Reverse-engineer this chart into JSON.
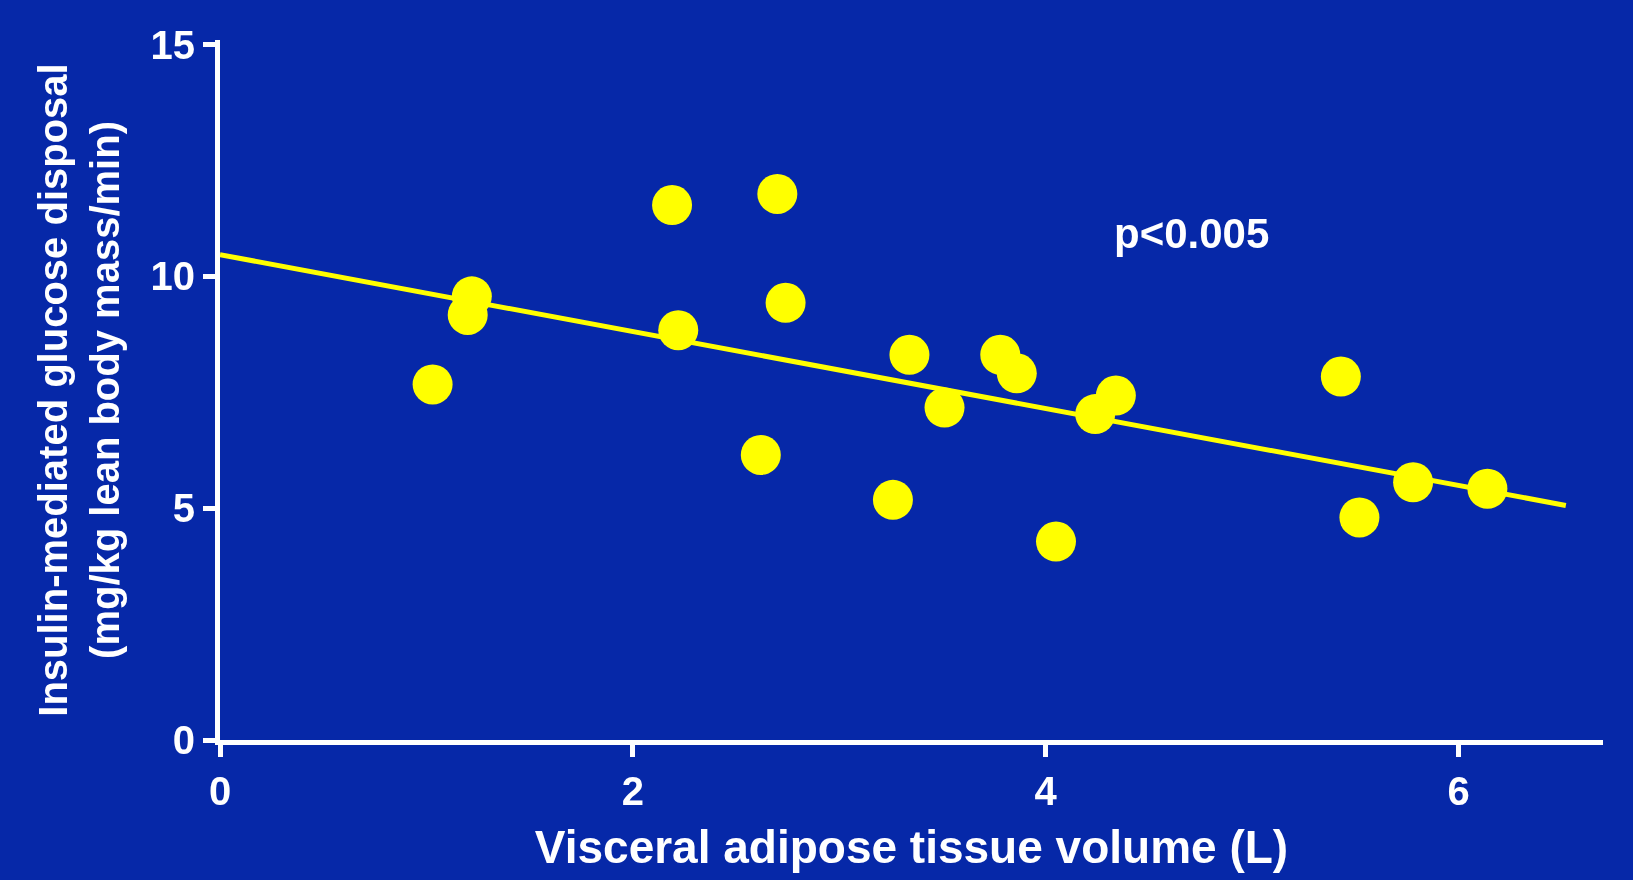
{
  "chart_data": {
    "type": "scatter",
    "xlabel": "Visceral adipose tissue volume (L)",
    "ylabel": "Insulin-mediated glucose disposal\n(mg/kg lean body mass/min)",
    "annotations": [
      "p<0.005"
    ],
    "xlim": [
      0,
      6.7
    ],
    "ylim": [
      0,
      15.1
    ],
    "xticks": [
      0,
      2,
      4,
      6
    ],
    "yticks": [
      0,
      5,
      10,
      15
    ],
    "grid": false,
    "series": [
      {
        "marker": "circle",
        "color": "#ffff00",
        "x": [
          1.03,
          1.22,
          1.2,
          2.19,
          2.22,
          2.62,
          2.7,
          2.74,
          3.26,
          3.34,
          3.51,
          3.78,
          3.86,
          4.05,
          4.24,
          4.34,
          5.43,
          5.52,
          5.78,
          6.14
        ],
        "values": [
          7.67,
          9.57,
          9.17,
          11.54,
          8.84,
          6.15,
          11.78,
          9.43,
          5.18,
          8.31,
          7.17,
          8.31,
          7.91,
          4.28,
          7.03,
          7.43,
          7.84,
          4.8,
          5.56,
          5.42
        ]
      },
      {
        "type": "line",
        "marker": "none",
        "color": "#ffff00",
        "x": [
          0,
          6.52
        ],
        "values": [
          10.47,
          5.06
        ]
      }
    ]
  }
}
